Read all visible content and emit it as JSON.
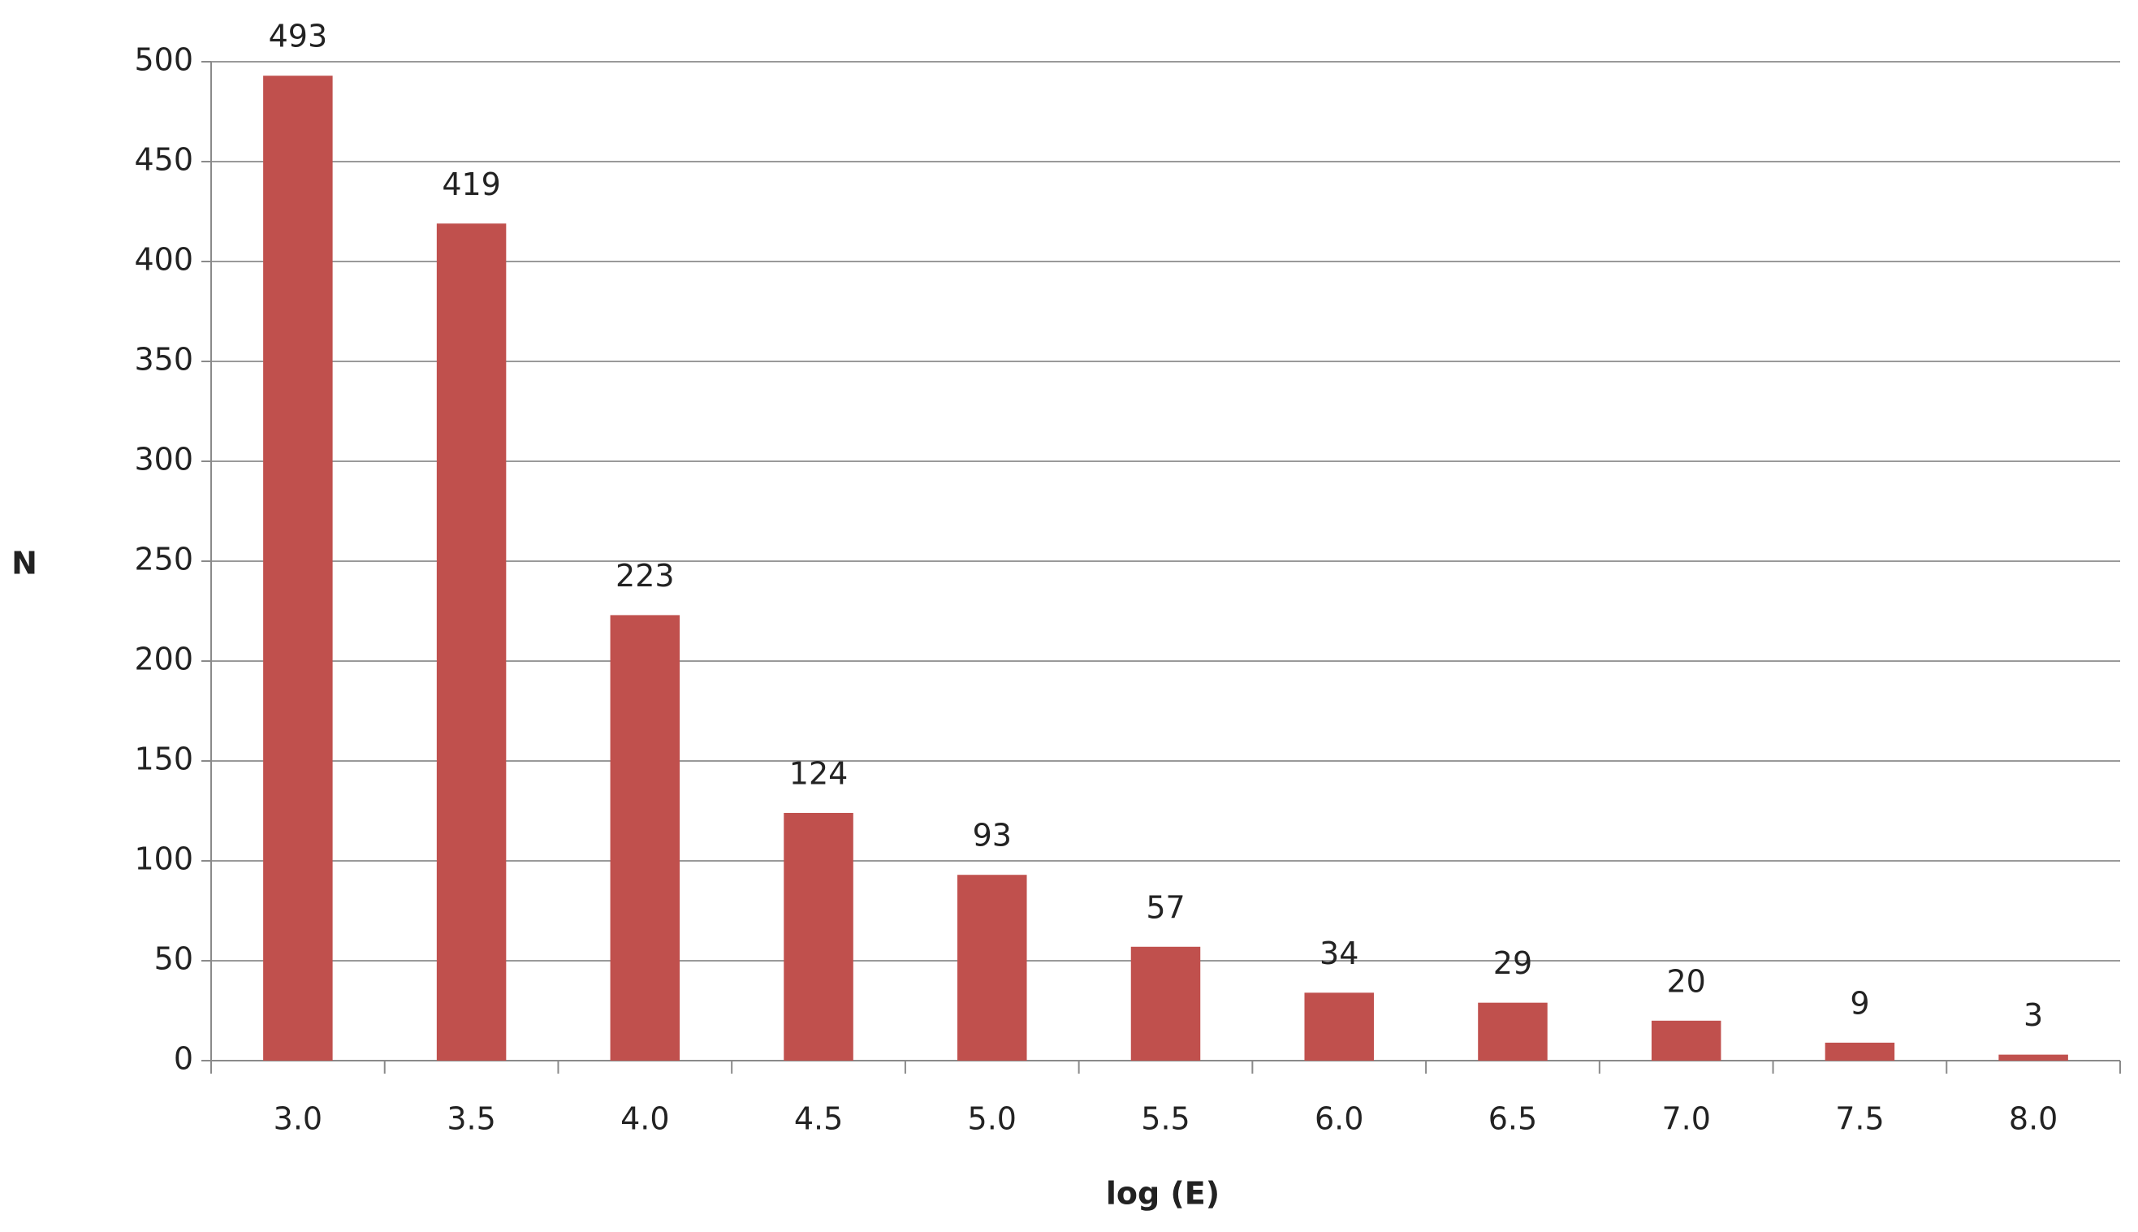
{
  "chart_data": {
    "type": "bar",
    "x_label": "log (E)",
    "y_label": "N",
    "categories": [
      "3.0",
      "3.5",
      "4.0",
      "4.5",
      "5.0",
      "5.5",
      "6.0",
      "6.5",
      "7.0",
      "7.5",
      "8.0"
    ],
    "values": [
      493,
      419,
      223,
      124,
      93,
      57,
      34,
      29,
      20,
      9,
      3
    ],
    "color": "#c0504d",
    "ylim": [
      0,
      500
    ],
    "yticks": [
      0,
      50,
      100,
      150,
      200,
      250,
      300,
      350,
      400,
      450,
      500
    ],
    "grid": true
  }
}
